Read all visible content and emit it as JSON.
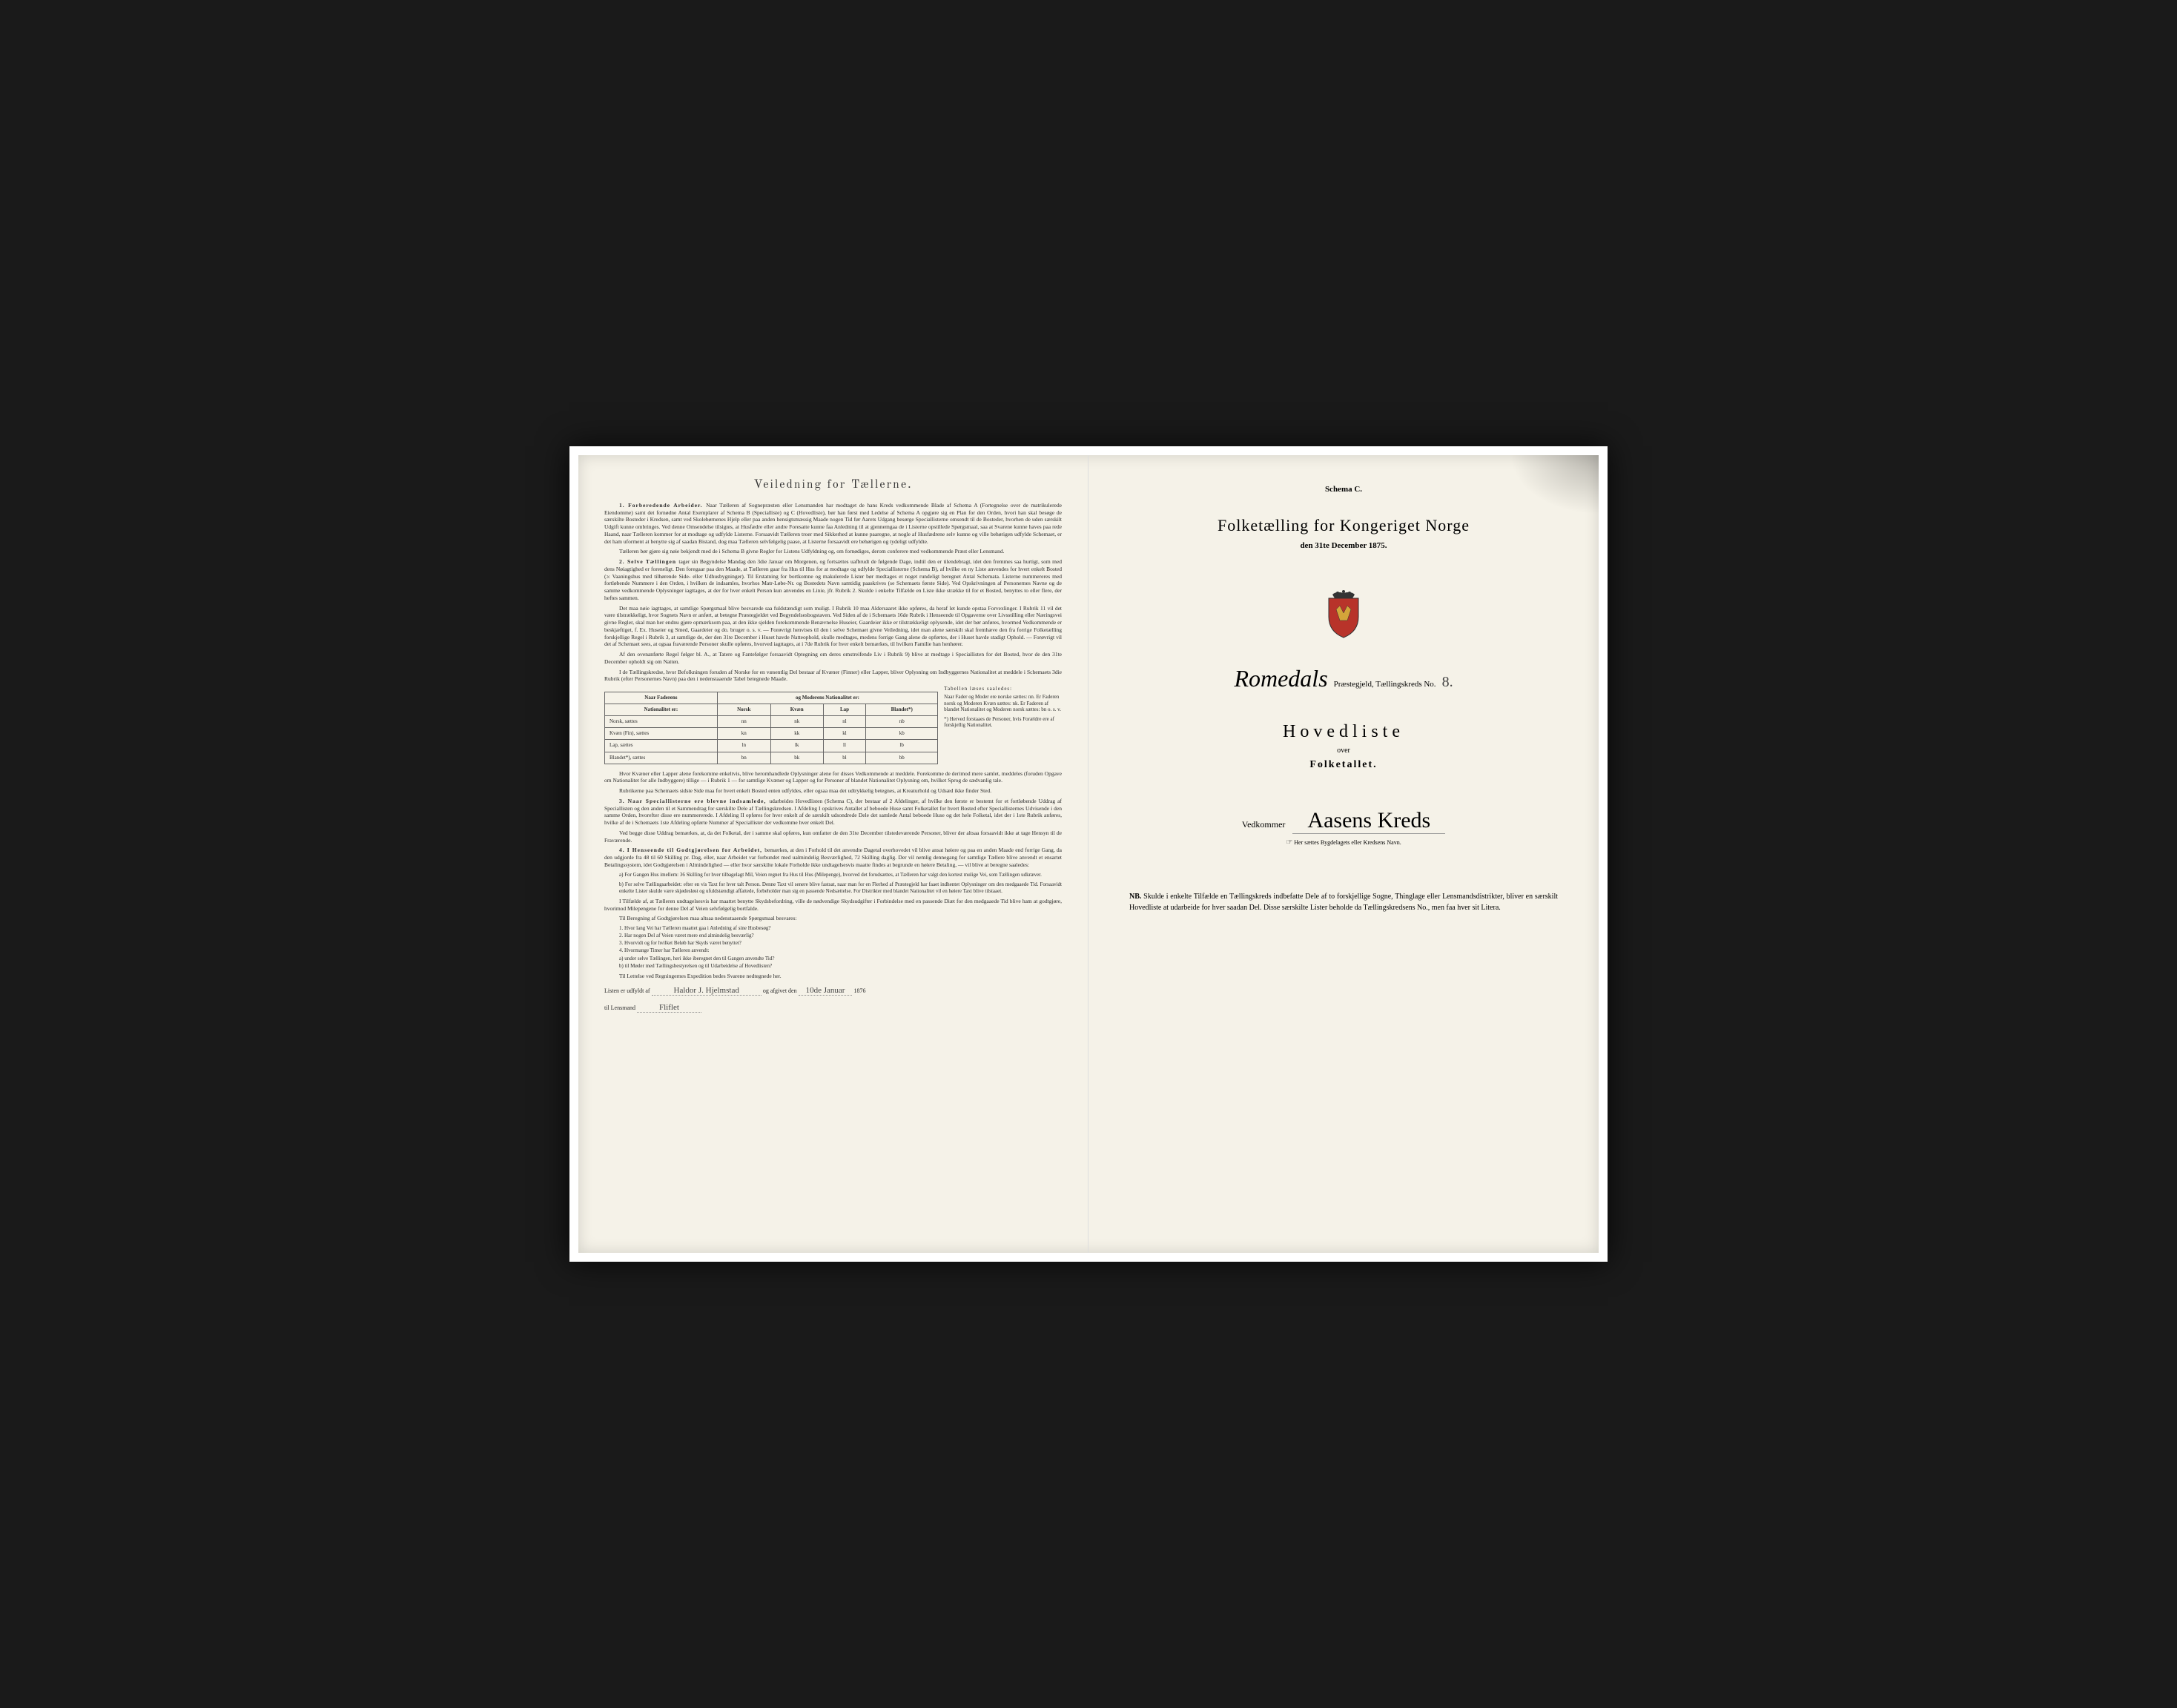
{
  "left": {
    "title": "Veiledning for Tællerne.",
    "paragraphs": [
      {
        "lead": "1. Forberedende Arbeider.",
        "text": "Naar Tælleren af Sognepræsten eller Lensmanden har modtaget de hans Kreds vedkommende Blade af Schema A (Fortegnelse over de matrikulerede Eiendomme) samt det fornødne Antal Exemplarer af Schema B (Specialliste) og C (Hovedliste), bør han først med Ledelse af Schema A opgjøre sig en Plan for den Orden, hvori han skal besøge de særskilte Bosteder i Kredsen, samt ved Skolebørnenes Hjelp eller paa anden hensigtsmæssig Maade nogen Tid før Aarets Udgang besørge Speciallisterne omsendt til de Bosteder, hvorhen de uden særskilt Udgift kunne ombringes. Ved denne Omsendelse tilsigtes, at Husfædre eller andre Foresatte kunne faa Anledning til at gjennemgaa de i Listerne opstillede Spørgsmaal, saa at Svarene kunne haves paa rede Haand, naar Tælleren kommer for at modtage og udfylde Listerne. Forsaavidt Tælleren troer med Sikkerhed at kunne paaregne, at nogle af Husfædrene selv kunne og ville behørigen udfylde Schemaet, er det ham uforment at benytte sig af saadan Bistand, dog maa Tælleren selvfølgelig paase, at Listerne forsaavidt ere behørigen og tydeligt udfyldte."
      },
      {
        "lead": "",
        "text": "Tælleren bør gjøre sig nøie bekjendt med de i Schema B givne Regler for Listens Udfyldning og, om fornødiges, derom conferere med vedkommende Præst eller Lensmand."
      },
      {
        "lead": "2. Selve Tællingen",
        "text": "tager sin Begyndelse Mandag den 3die Januar om Morgenen, og fortsættes uafbrudt de følgende Dage, indtil den er tilendebragt, idet den fremmes saa hurtigt, som med dens Nøiagtighed er foreneligt. Den foregaar paa den Maade, at Tælleren gaar fra Hus til Hus for at modtage og udfylde Speciallisterne (Schema B), af hvilke en ny Liste anvendes for hvert enkelt Bosted (ɔ: Vaaningshus med tilhørende Side- eller Udhusbygninger). Til Erstatning for bortkomne og makulerede Lister bør medtages et noget rundeligt beregnet Antal Schemata. Listerne nummereres med fortløbende Nummere i den Orden, i hvilken de indsamles, hvorhos Matr-Løbe-Nr. og Bostedets Navn samtidig paaskrives (se Schemaets første Side). Ved Opskrivningen af Personernes Navne og de samme vedkommende Oplysninger iagttages, at der for hver enkelt Person kun anvendes en Linie, jfr. Rubrik 2. Skulde i enkelte Tilfælde en Liste ikke strække til for et Bosted, benyttes to eller flere, der heftes sammen."
      },
      {
        "lead": "",
        "text": "Det maa nøie iagttages, at samtlige Spørgsmaal blive besvarede saa fuldstændigt som muligt. I Rubrik 10 maa Aldersaaret ikke opføres, da heraf let kunde opstaa Forvexlinger. I Rubrik 11 vil det være tilstrækkeligt, hvor Sognets Navn er anført, at betegne Præstegjeldet ved Begyndelsesbogstaven. Ved Siden af de i Schemaets 16de Rubrik i Henseende til Opgaverne over Livsstilling eller Næringsvei givne Regler, skal man her endnu gjøre opmærksom paa, at den ikke sjelden forekommende Benævnelse Huseier, Gaardeier ikke er tilstrækkeligt oplysende, idet der bør anføres, hvormed Vedkommende er beskjæftiget, f. Ex. Huseier og Smed, Gaardeier og do. bruger o. s. v. — Forøvrigt henvises til den i selve Schemaet givne Veiledning, idet man alene særskilt skal fremhæve den fra forrige Folketælling forskjellige Regel i Rubrik 3, at samtlige de, der den 31te December i Huset havde Natteophold, skulle medtages, medens forrige Gang alene de opførtes, der i Huset havde stadigt Ophold. — Forøvrigt vil det af Schemaet sees, at ogsaa fraværende Personer skulle opføres, hvorved iagttages, at i 7de Rubrik for hver enkelt bemærkes, til hvilken Familie han henhører."
      },
      {
        "lead": "",
        "text": "Af den ovenanførte Regel følger bl. A., at Tatere og Fantefølger forsaavidt Optegning om deres omstreifende Liv i Rubrik 9) blive at medtage i Speciallisten for det Bosted, hvor de den 31te December opholdt sig om Natten."
      },
      {
        "lead": "",
        "text": "I de Tællingskredse, hvor Befolkningen foruden af Norske for en væsentlig Del bestaar af Kvæner (Finner) eller Lapper, bliver Oplysning om Indbyggernes Nationalitet at meddele i Schemaets 3die Rubrik (efter Personernes Navn) paa den i nedenstaaende Tabel betegnede Maade."
      }
    ],
    "table": {
      "header_top_left": "Naar Faderens",
      "header_top_right": "og Moderens Nationalitet er:",
      "header_row2_left": "Nationalitet er:",
      "cols": [
        "Norsk",
        "Kvæn",
        "Lap",
        "Blandet*)"
      ],
      "rows": [
        {
          "label": "Norsk, sættes",
          "cells": [
            "nn",
            "nk",
            "nl",
            "nb"
          ]
        },
        {
          "label": "Kvæn (Fin), sættes",
          "cells": [
            "kn",
            "kk",
            "kl",
            "kb"
          ]
        },
        {
          "label": "Lap, sættes",
          "cells": [
            "ln",
            "lk",
            "ll",
            "lb"
          ]
        },
        {
          "label": "Blandet*), sættes",
          "cells": [
            "bn",
            "bk",
            "bl",
            "bb"
          ]
        }
      ],
      "side_note_title": "Tabellen læses saaledes:",
      "side_note": "Naar Fader og Moder ere norske sættes: nn. Er Faderen norsk og Moderen Kvæn sættes: nk. Er Faderen af blandet Nationalitet og Moderen norsk sættes: bn o. s. v.",
      "side_note_footnote": "*) Herved forstaaes de Personer, hvis Forældre ere af forskjellig Nationalitet."
    },
    "paragraphs2": [
      {
        "lead": "",
        "text": "Hvor Kvæner eller Lapper alene forekomme enkeltvis, blive heromhandlede Oplysninger alene for disses Vedkommende at meddele. Forekomme de derimod mere samlet, meddeles (foruden Opgave om Nationalitet for alle Indbyggere) tillige — i Rubrik 1 — for samtlige Kvæner og Lapper og for Personer af blandet Nationalitet Oplysning om, hvilket Sprog de sædvanlig tale."
      },
      {
        "lead": "",
        "text": "Rubrikerne paa Schemaets sidste Side maa for hvert enkelt Bosted enten udfyldes, eller ogsaa maa det udtrykkelig betegnes, at Kreaturhold og Udsæd ikke finder Sted."
      },
      {
        "lead": "3. Naar Speciallisterne ere blevne indsamlede,",
        "text": "udarbeides Hovedlisten (Schema C), der bestaar af 2 Afdelinger, af hvilke den første er bestemt for et fortløbende Uddrag af Speciallisten og den anden til et Sammendrag for særskilte Dele af Tællingskredsen. I Afdeling I opskrives Antallet af beboede Huse samt Folketallet for hvert Bosted efter Speciallisternes Udvisende i den samme Orden, hvorefter disse ere nummererede. I Afdeling II opføres for hver enkelt af de særskilt udsondrede Dele det samlede Antal beboede Huse og det hele Folketal, idet der i 1ste Rubrik anføres, hvilke af de i Schemaets 1ste Afdeling opførte Nummer af Speciallister der vedkomme hver enkelt Del."
      },
      {
        "lead": "",
        "text": "Ved begge disse Uddrag bemærkes, at, da det Folketal, der i samme skal opføres, kun omfatter de den 31te December tilstedeværende Personer, bliver der altsaa forsaavidt ikke at tage Hensyn til de Fraværende."
      },
      {
        "lead": "4. I Henseende til Godtgjørelsen for Arbeidet,",
        "text": "bemærkes, at den i Forhold til det anvendte Dagetal overhovedet vil blive ansat høiere og paa en anden Maade end forrige Gang, da den udgjorde fra 48 til 60 Skilling pr. Dag, eller, naar Arbeidet var forbundet med ualmindelig Besværlighed, 72 Skilling daglig. Der vil nemlig dennegang for samtlige Tællere blive anvendt et ensartet Betalingssystem, idet Godtgjørelsen i Almindelighed — eller hvor særskilte lokale Forholde ikke undtagelsesvis maatte findes at begrunde en høiere Betaling, — vil blive at beregne saaledes:"
      }
    ],
    "sublist": [
      "a) For Gangen Hus imellem: 36 Skilling for hver tilbagelagt Mil, Veien regnet fra Hus til Hus (Milepenge), hvorved det forudsættes, at Tælleren har valgt den kortest mulige Vei, som Tællingen udkræver.",
      "b) For selve Tællingsarbeidet: efter en vis Taxt for hver talt Person. Denne Taxt vil senere blive fastsat, naar man for en Flerhed af Præstegjeld har faaet indhentet Oplysninger om den medgaaede Tid. Forsaavidt enkelte Lister skulde være skjødesløst og ufuldstændigt affattede, forbeholder man sig en passende Nedsættelse. For Distrikter med blandet Nationalitet vil en høiere Taxt blive tilstaaet."
    ],
    "paragraphs3": [
      {
        "lead": "",
        "text": "I Tilfælde af, at Tælleren undtagelsesvis har maattet benytte Skydsbefordring, ville de nødvendige Skydsudgifter i Forbindelse med en passende Diæt for den medgaaede Tid blive ham at godtgjøre, hvorimod Milepengene for denne Del af Veien selvfølgelig bortfalde."
      },
      {
        "lead": "",
        "text": "Til Beregning af Godtgjørelsen maa altsaa nedenstaaende Spørgsmaal besvares:"
      }
    ],
    "questions": [
      "1. Hvor lang Vei har Tælleren maattet gaa i Anledning af sine Husbesøg?",
      "2. Har nogen Del af Veien været mere end almindelig besværlig?",
      "3. Hvorvidt og for hvilket Beløb har Skyds været benyttet?",
      "4. Hvormange Timer har Tælleren anvendt:",
      "a) under selve Tællingen, heri ikke iberegnet den til Gangen anvendte Tid?",
      "b) til Møder med Tællingsbestyrelsen og til Udarbeidelse af Hovedlisten?"
    ],
    "footer_text": "Til Lettelse ved Regningernes Expedition bedes Svarene nedtegnede her.",
    "signature_line_1a": "Listen er udfyldt af",
    "signature_name": "Haldor J. Hjelmstad",
    "signature_line_1b": "og afgivet den",
    "signature_date": "10de Januar",
    "signature_year": "1876",
    "signature_line_2a": "til Lensmand",
    "signature_lensmand": "Fliflet"
  },
  "right": {
    "schema": "Schema C.",
    "title": "Folketælling for Kongeriget Norge",
    "subtitle": "den 31te December 1875.",
    "district_script": "Romedals",
    "district_suffix": "Præstegjeld, Tællingskreds No.",
    "district_no": "8.",
    "hovedliste": "Hovedliste",
    "over": "over",
    "folketallet": "Folketallet.",
    "vedkommer_label": "Vedkommer",
    "vedkommer_script": "Aasens Kreds",
    "vedkommer_note": "Her sættes Bygdelagets eller Kredsens Navn.",
    "pointer": "☞",
    "nb_label": "NB.",
    "nb_text": "Skulde i enkelte Tilfælde en Tællingskreds indbefatte Dele af to forskjellige Sogne, Thinglage eller Lensmandsdistrikter, bliver en særskilt Hovedliste at udarbeide for hver saadan Del. Disse særskilte Lister beholde da Tællingskredsens No., men faa hver sit Litera."
  }
}
